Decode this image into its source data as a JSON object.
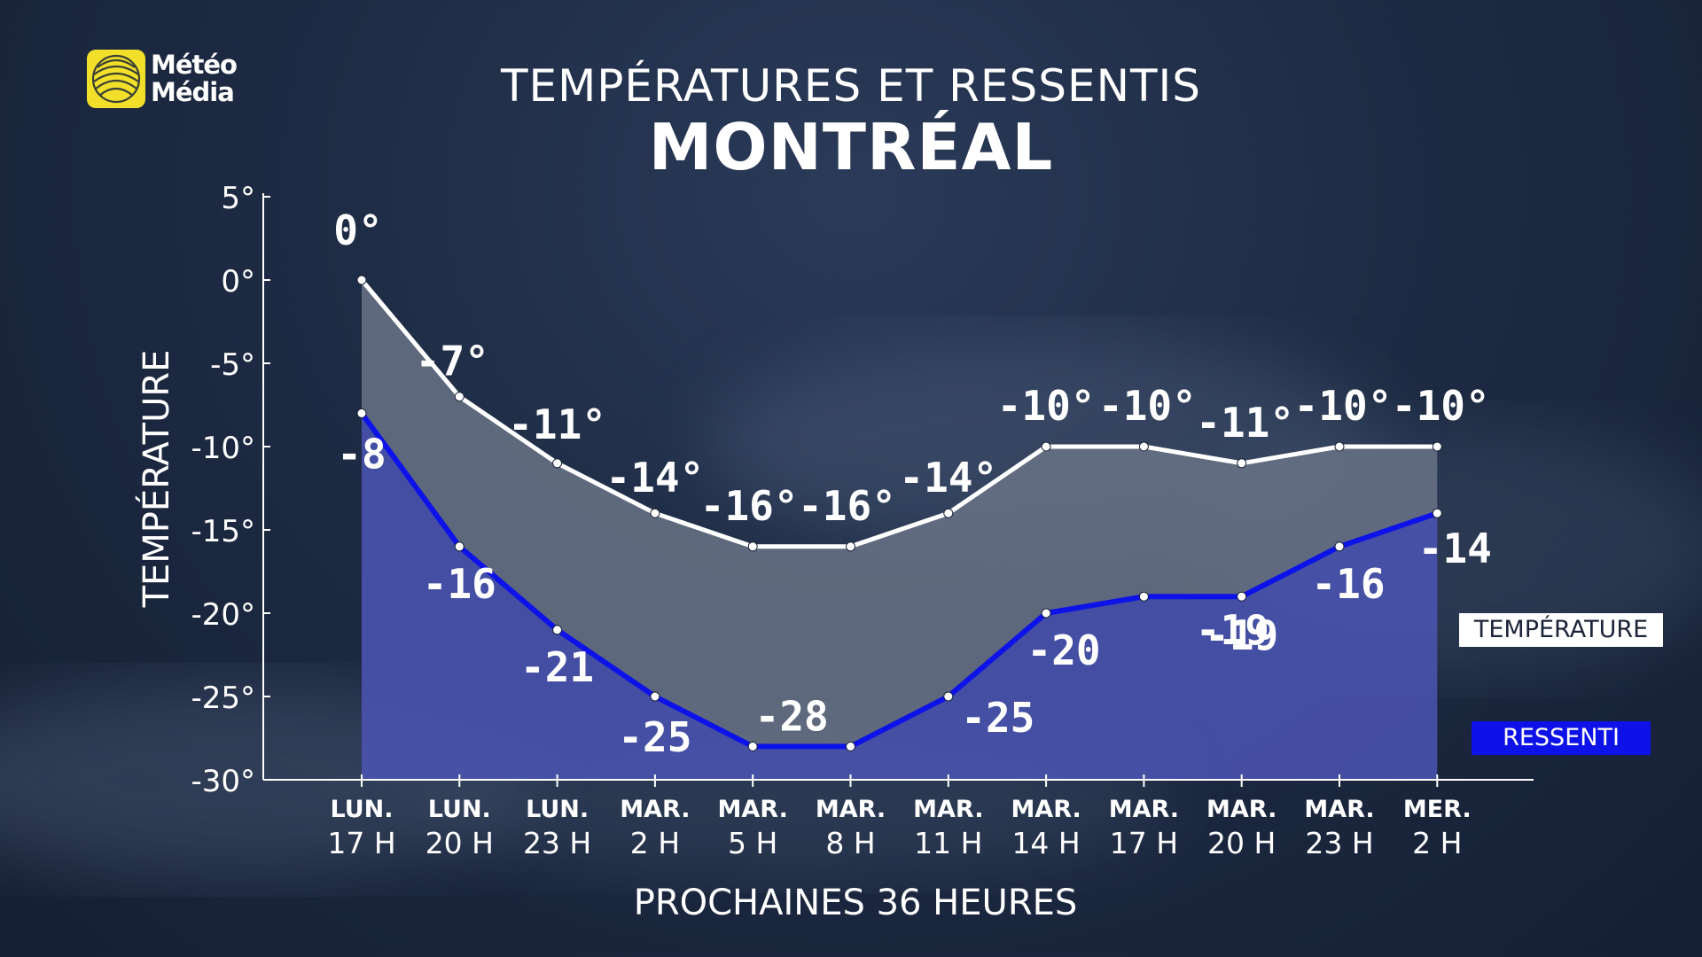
{
  "brand": {
    "line1": "Météo",
    "line2": "Média"
  },
  "title": "TEMPÉRATURES ET RESSENTIS",
  "subtitle": "MONTRÉAL",
  "legend": {
    "temperature": "TEMPÉRATURE",
    "feels_like": "RESSENTI"
  },
  "colors": {
    "temperature_line": "#ffffff",
    "feels_like_line": "#0d12e8",
    "temperature_fill": "#6a7386",
    "feels_like_fill": "#4b55b4",
    "logo": "#f2df2a"
  },
  "chart_data": {
    "type": "area",
    "title": "TEMPÉRATURES ET RESSENTIS",
    "subtitle": "MONTRÉAL",
    "ylabel": "TEMPÉRATURE",
    "xlabel": "PROCHAINES 36 HEURES",
    "ylim": [
      -30,
      5
    ],
    "yticks": [
      5,
      0,
      -5,
      -10,
      -15,
      -20,
      -25,
      -30
    ],
    "ytick_labels": [
      "5°",
      "0°",
      "-5°",
      "-10°",
      "-15°",
      "-20°",
      "-25°",
      "-30°"
    ],
    "categories": [
      {
        "day": "LUN.",
        "hour": "17 H"
      },
      {
        "day": "LUN.",
        "hour": "20 H"
      },
      {
        "day": "LUN.",
        "hour": "23 H"
      },
      {
        "day": "MAR.",
        "hour": "2 H"
      },
      {
        "day": "MAR.",
        "hour": "5 H"
      },
      {
        "day": "MAR.",
        "hour": "8 H"
      },
      {
        "day": "MAR.",
        "hour": "11 H"
      },
      {
        "day": "MAR.",
        "hour": "14 H"
      },
      {
        "day": "MAR.",
        "hour": "17 H"
      },
      {
        "day": "MAR.",
        "hour": "20 H"
      },
      {
        "day": "MAR.",
        "hour": "23 H"
      },
      {
        "day": "MER.",
        "hour": "2 H"
      }
    ],
    "series": [
      {
        "name": "TEMPÉRATURE",
        "values": [
          0,
          -7,
          -11,
          -14,
          -16,
          -16,
          -14,
          -10,
          -10,
          -11,
          -10,
          -10
        ],
        "labels": [
          "0°",
          "-7°",
          "-11°",
          "-14°",
          "-16°",
          "-16°",
          "-14°",
          "-10°",
          "-10°",
          "-11°",
          "-10°",
          "-10°"
        ]
      },
      {
        "name": "RESSENTI",
        "values": [
          -8,
          -16,
          -21,
          -25,
          -28,
          -28,
          -25,
          -20,
          -19,
          -19,
          -16,
          -14
        ],
        "labels": [
          "-8",
          "-16",
          "-21",
          "-25",
          "-28",
          "-28",
          "-25",
          "-20",
          "-19",
          "-19",
          "-16",
          "-14"
        ]
      }
    ],
    "grid": false,
    "legend_position": "right"
  }
}
